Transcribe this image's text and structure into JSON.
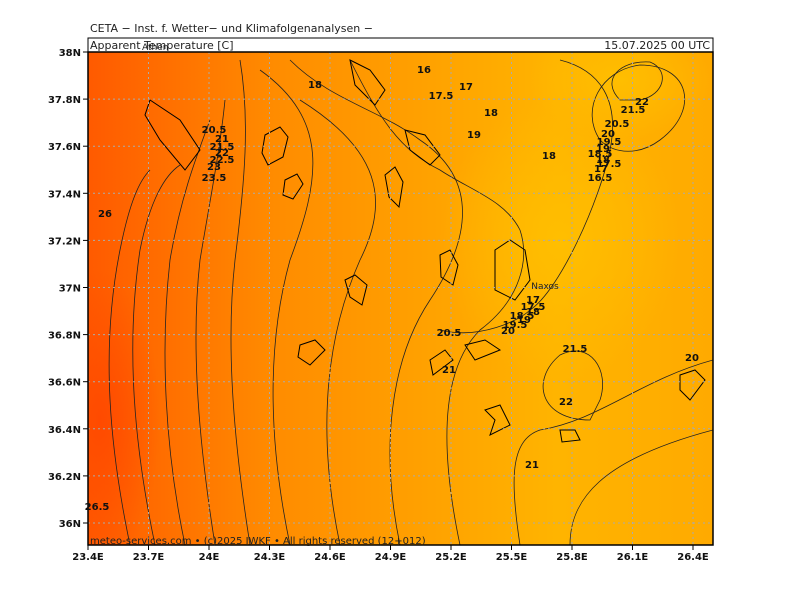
{
  "header": {
    "institute": "CETA − Inst. f. Wetter− und Klimafolgenanalysen −",
    "title": "Apparent Temperature [C]",
    "valid_time": "15.07.2025 00 UTC"
  },
  "map": {
    "lat_ticks": [
      {
        "value": 38,
        "label": "38N"
      },
      {
        "value": 37.8,
        "label": "37.8N"
      },
      {
        "value": 37.6,
        "label": "37.6N"
      },
      {
        "value": 37.4,
        "label": "37.4N"
      },
      {
        "value": 37.2,
        "label": "37.2N"
      },
      {
        "value": 37,
        "label": "37N"
      },
      {
        "value": 36.8,
        "label": "36.8N"
      },
      {
        "value": 36.6,
        "label": "36.6N"
      },
      {
        "value": 36.4,
        "label": "36.4N"
      },
      {
        "value": 36.2,
        "label": "36.2N"
      },
      {
        "value": 36,
        "label": "36N"
      }
    ],
    "lon_ticks": [
      {
        "value": 23.4,
        "label": "23.4E"
      },
      {
        "value": 23.7,
        "label": "23.7E"
      },
      {
        "value": 24,
        "label": "24E"
      },
      {
        "value": 24.3,
        "label": "24.3E"
      },
      {
        "value": 24.6,
        "label": "24.6E"
      },
      {
        "value": 24.9,
        "label": "24.9E"
      },
      {
        "value": 25.2,
        "label": "25.2E"
      },
      {
        "value": 25.5,
        "label": "25.5E"
      },
      {
        "value": 25.8,
        "label": "25.8E"
      },
      {
        "value": 26.1,
        "label": "26.1E"
      },
      {
        "value": 26.4,
        "label": "26.4E"
      }
    ],
    "places": [
      "Athen",
      "Naxos"
    ],
    "contour_labels": [
      18,
      16,
      17,
      17.5,
      18,
      19,
      18,
      22,
      21.5,
      20.5,
      20,
      19.5,
      19,
      18.5,
      18,
      17.5,
      17,
      16.5,
      20.5,
      21,
      21.5,
      22,
      22.5,
      23,
      23.5,
      26,
      17,
      17.5,
      18,
      18.5,
      19,
      19.5,
      20,
      20.5,
      21,
      21.5,
      20,
      22,
      21,
      26.5
    ]
  },
  "footer": "meteo-services.com • (c)2025 IWKF • All rights reserved (12+012)"
}
